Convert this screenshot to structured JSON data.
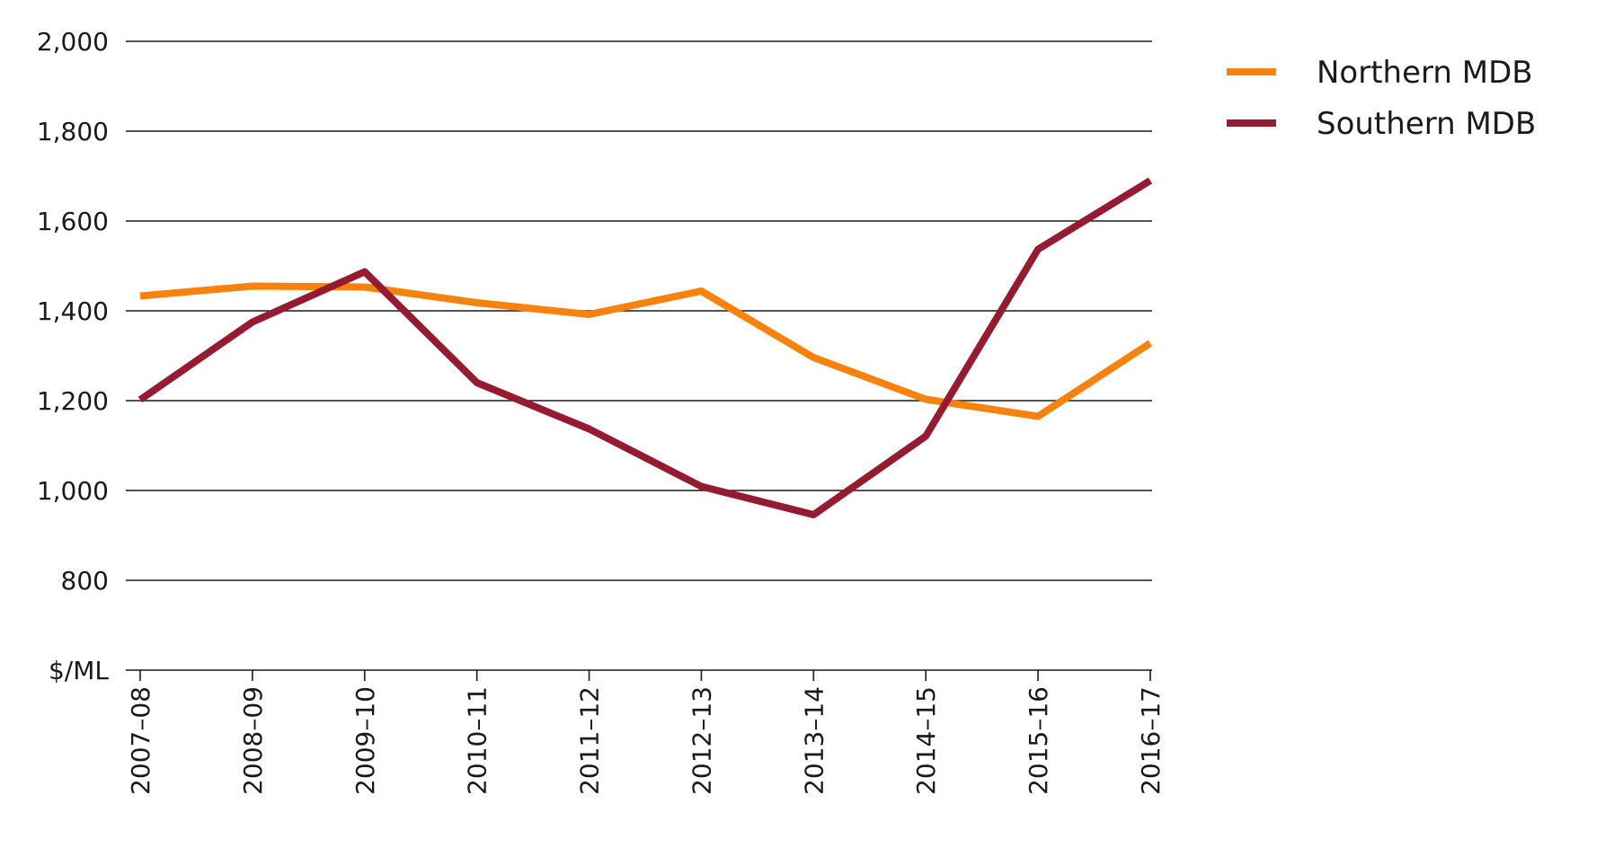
{
  "chart_data": {
    "type": "line",
    "title": "",
    "xlabel": "",
    "ylabel": "$/ML",
    "categories": [
      "2007–08",
      "2008–09",
      "2009–10",
      "2010–11",
      "2011–12",
      "2012–13",
      "2013–14",
      "2014–15",
      "2015–16",
      "2016–17"
    ],
    "y_ticks": [
      "2,000",
      "1,800",
      "1,600",
      "1,400",
      "1,200",
      "1,000",
      "800"
    ],
    "ylim": [
      600,
      2000
    ],
    "grid": true,
    "legend_position": "top-right",
    "series": [
      {
        "name": "Northern MDB",
        "color": "#f7830e",
        "values": [
          1433,
          1455,
          1453,
          1418,
          1392,
          1444,
          1296,
          1203,
          1165,
          1328
        ]
      },
      {
        "name": "Southern MDB",
        "color": "#951b30",
        "values": [
          1202,
          1375,
          1487,
          1240,
          1137,
          1009,
          946,
          1121,
          1537,
          1690
        ]
      }
    ]
  }
}
